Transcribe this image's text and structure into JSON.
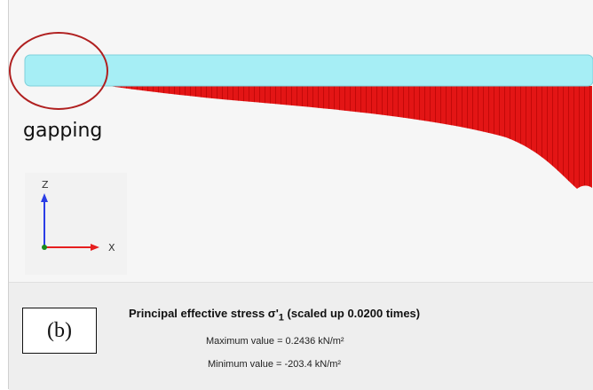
{
  "annotation": {
    "gapping_label": "gapping"
  },
  "axes": {
    "z_label": "Z",
    "x_label": "X"
  },
  "legend": {
    "title_main": "Principal effective stress σ'",
    "title_sub": "1",
    "title_suffix": " (scaled up 0.0200 times)",
    "max_text": "Maximum value = 0.2436 kN/m²",
    "min_text": "Minimum value = -203.4 kN/m²"
  },
  "panel_tag": "(b)",
  "colors": {
    "beam": "#a6eef5",
    "stress_fill": "#e31515",
    "stress_hatch": "#a80000",
    "circle": "#b02020",
    "axis_z": "#2b3ee6",
    "axis_x": "#e61f1f",
    "origin": "#1a8a1a"
  }
}
